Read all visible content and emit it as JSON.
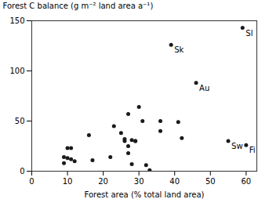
{
  "chart_data": {
    "type": "scatter",
    "xlabel": "Forest area (% total land area)",
    "ylabel": "Forest C balance (g m⁻² land area a⁻¹)",
    "x": [
      9,
      9,
      10,
      10,
      11,
      11,
      12,
      16,
      17,
      22,
      23,
      25,
      26,
      26,
      27,
      27,
      27,
      28,
      28,
      29,
      29,
      30,
      31,
      32,
      33,
      36,
      36,
      39,
      41,
      42,
      46,
      55,
      59,
      60
    ],
    "values": [
      8,
      14,
      23,
      13,
      12,
      23,
      10,
      36,
      11,
      14,
      45,
      38,
      30,
      32,
      57,
      25,
      18,
      31,
      7,
      30,
      30,
      64,
      50,
      6,
      1,
      50,
      40,
      126,
      49,
      33,
      88,
      30,
      143,
      26
    ],
    "color": "#1a1a1a",
    "annotations": [
      {
        "x": 39,
        "y": 126,
        "text": "Sk"
      },
      {
        "x": 46,
        "y": 88,
        "text": "Au"
      },
      {
        "x": 55,
        "y": 30,
        "text": "Sw"
      },
      {
        "x": 59,
        "y": 143,
        "text": "Sl"
      },
      {
        "x": 60,
        "y": 26,
        "text": "Fi"
      }
    ],
    "xlim": [
      0,
      63
    ],
    "ylim": [
      0,
      150
    ],
    "xticks": [
      0,
      10,
      20,
      30,
      40,
      50,
      60
    ],
    "yticks": [
      0,
      50,
      100,
      150
    ]
  }
}
